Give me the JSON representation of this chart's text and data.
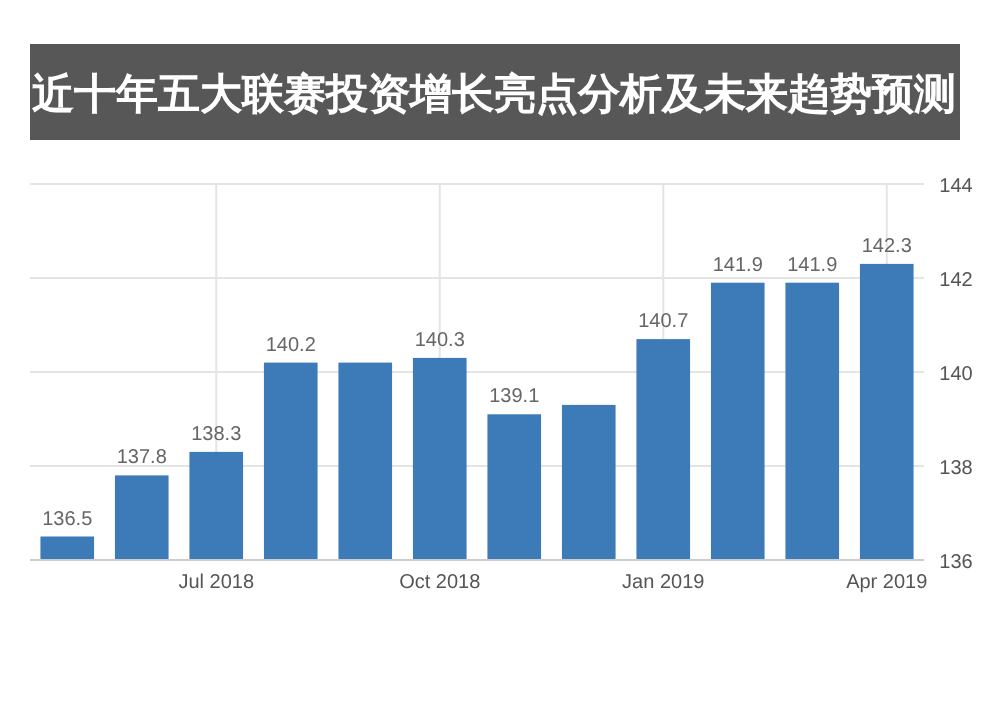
{
  "chart_data": {
    "type": "bar",
    "title": "近十年五大联赛投资增长亮点分析及未来趋势预测",
    "categories": [
      null,
      null,
      "Jul 2018",
      null,
      null,
      "Oct 2018",
      null,
      null,
      "Jan 2019",
      null,
      null,
      "Apr 2019"
    ],
    "values": [
      136.5,
      137.8,
      138.3,
      140.2,
      140.2,
      140.3,
      139.1,
      139.3,
      140.7,
      141.9,
      141.9,
      142.3
    ],
    "value_labels": [
      "136.5",
      "137.8",
      "138.3",
      "140.2",
      null,
      "140.3",
      "139.1",
      null,
      "140.7",
      "141.9",
      "141.9",
      "142.3"
    ],
    "color": "#3d7ab8",
    "ylim": [
      136,
      144
    ],
    "yticks": [
      136,
      138,
      140,
      142,
      144
    ],
    "grid": true
  }
}
